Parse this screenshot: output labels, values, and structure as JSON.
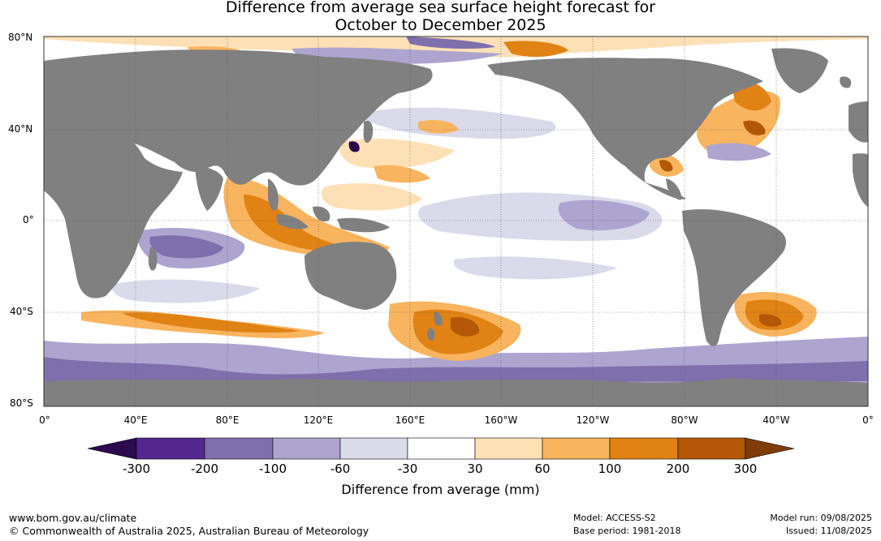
{
  "title": {
    "line1": "Difference from average sea surface height forecast for",
    "line2": "October to December 2025"
  },
  "map": {
    "lat_labels": [
      "80°N",
      "40°N",
      "0°",
      "40°S",
      "80°S"
    ],
    "lon_labels": [
      "0°",
      "40°E",
      "80°E",
      "120°E",
      "160°E",
      "160°W",
      "120°W",
      "80°W",
      "40°W",
      "0°"
    ],
    "land_color": "#808080",
    "ocean_neutral_color": "#ffffff"
  },
  "colorbar": {
    "title": "Difference from average (mm)",
    "ticks": [
      "-300",
      "-200",
      "-100",
      "-60",
      "-30",
      "30",
      "60",
      "100",
      "200",
      "300"
    ],
    "colors": [
      "#2d0a4e",
      "#54278f",
      "#7f6fad",
      "#ada5cf",
      "#dadaeb",
      "#ffffff",
      "#fde0b6",
      "#f9b45f",
      "#e08214",
      "#b35806",
      "#7f3b08"
    ]
  },
  "footer": {
    "url": "www.bom.gov.au/climate",
    "copyright": "© Commonwealth of Australia 2025, Australian Bureau of Meteorology",
    "model": "Model: ACCESS-S2",
    "base_period": "Base period: 1981-2018",
    "model_run": "Model run: 09/08/2025",
    "issued": "Issued: 11/08/2025"
  }
}
